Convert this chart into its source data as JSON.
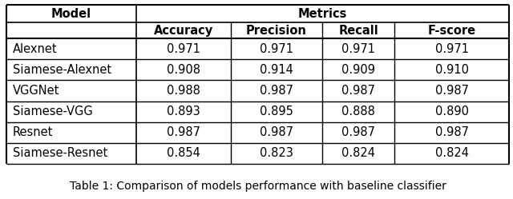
{
  "caption": "Table 1: Comparison of models performance with baseline classifier",
  "metrics_header": "Metrics",
  "model_header": "Model",
  "col_headers": [
    "Accuracy",
    "Precision",
    "Recall",
    "F-score"
  ],
  "rows": [
    [
      "Alexnet",
      "0.971",
      "0.971",
      "0.971",
      "0.971"
    ],
    [
      "Siamese-Alexnet",
      "0.908",
      "0.914",
      "0.909",
      "0.910"
    ],
    [
      "VGGNet",
      "0.988",
      "0.987",
      "0.987",
      "0.987"
    ],
    [
      "Siamese-VGG",
      "0.893",
      "0.895",
      "0.888",
      "0.890"
    ],
    [
      "Resnet",
      "0.987",
      "0.987",
      "0.987",
      "0.987"
    ],
    [
      "Siamese-Resnet",
      "0.854",
      "0.823",
      "0.824",
      "0.824"
    ]
  ],
  "background_color": "#ffffff",
  "line_color": "#000000",
  "text_color": "#000000",
  "font_size": 10.5,
  "caption_font_size": 10,
  "bold_headers": true
}
